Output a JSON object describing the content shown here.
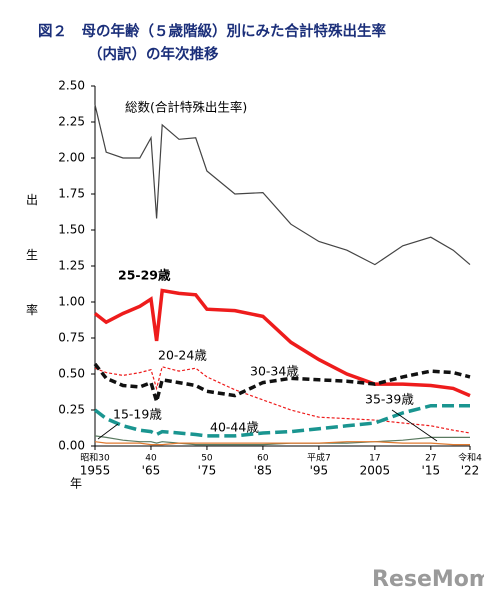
{
  "chart_data": {
    "type": "line",
    "title": "図２　母の年齢（５歳階級）別にみた合計特殊出生率",
    "subtitle": "（内訳）の年次推移",
    "y_label": "出生率",
    "x_label": "年",
    "x": [
      1955,
      1957,
      1960,
      1963,
      1965,
      1966,
      1967,
      1970,
      1973,
      1975,
      1980,
      1985,
      1990,
      1995,
      2000,
      2005,
      2010,
      2015,
      2019,
      2022
    ],
    "series": [
      {
        "name": "総数(合計特殊出生率)",
        "color": "#444444",
        "width": 1.2,
        "dash": "none",
        "values": [
          2.37,
          2.04,
          2.0,
          2.0,
          2.14,
          1.58,
          2.23,
          2.13,
          2.14,
          1.91,
          1.75,
          1.76,
          1.54,
          1.42,
          1.36,
          1.26,
          1.39,
          1.45,
          1.36,
          1.26
        ]
      },
      {
        "name": "25-29歳",
        "color": "#ee1c1c",
        "width": 3.5,
        "dash": "none",
        "values": [
          0.92,
          0.86,
          0.92,
          0.97,
          1.02,
          0.73,
          1.08,
          1.06,
          1.05,
          0.95,
          0.94,
          0.9,
          0.72,
          0.6,
          0.5,
          0.43,
          0.43,
          0.42,
          0.4,
          0.35
        ]
      },
      {
        "name": "20-24歳",
        "color": "#ee1c1c",
        "width": 1.2,
        "dash": "3,2",
        "values": [
          0.54,
          0.51,
          0.49,
          0.51,
          0.53,
          0.4,
          0.55,
          0.52,
          0.54,
          0.48,
          0.39,
          0.32,
          0.25,
          0.2,
          0.19,
          0.18,
          0.16,
          0.14,
          0.11,
          0.09
        ]
      },
      {
        "name": "30-34歳",
        "color": "#111111",
        "width": 3.5,
        "dash": "7,4",
        "values": [
          0.57,
          0.47,
          0.42,
          0.41,
          0.44,
          0.31,
          0.46,
          0.44,
          0.42,
          0.38,
          0.35,
          0.44,
          0.47,
          0.46,
          0.45,
          0.43,
          0.48,
          0.52,
          0.51,
          0.48
        ]
      },
      {
        "name": "35-39歳",
        "color": "#1a9590",
        "width": 3.5,
        "dash": "12,5",
        "values": [
          0.25,
          0.19,
          0.14,
          0.11,
          0.1,
          0.08,
          0.1,
          0.09,
          0.08,
          0.07,
          0.07,
          0.09,
          0.1,
          0.12,
          0.14,
          0.16,
          0.23,
          0.28,
          0.28,
          0.28
        ]
      },
      {
        "name": "40-44歳",
        "color": "#5a7a60",
        "width": 1.2,
        "dash": "none",
        "values": [
          0.07,
          0.06,
          0.04,
          0.03,
          0.03,
          0.02,
          0.03,
          0.02,
          0.01,
          0.01,
          0.01,
          0.01,
          0.02,
          0.02,
          0.02,
          0.03,
          0.04,
          0.06,
          0.06,
          0.06
        ]
      },
      {
        "name": "15-19歳",
        "color": "#e07a30",
        "width": 1.2,
        "dash": "none",
        "values": [
          0.03,
          0.02,
          0.02,
          0.02,
          0.01,
          0.01,
          0.01,
          0.02,
          0.02,
          0.02,
          0.02,
          0.02,
          0.02,
          0.02,
          0.03,
          0.03,
          0.02,
          0.02,
          0.01,
          0.01
        ]
      }
    ],
    "xlim": [
      1955,
      2022
    ],
    "ylim": [
      0,
      2.5
    ],
    "yticks": [
      {
        "value": 0,
        "label": "0.00"
      },
      {
        "value": 0.25,
        "label": "0.25"
      },
      {
        "value": 0.5,
        "label": "0.50"
      },
      {
        "value": 0.75,
        "label": "0.75"
      },
      {
        "value": 1,
        "label": "1.00"
      },
      {
        "value": 1.25,
        "label": "1.25"
      },
      {
        "value": 1.5,
        "label": "1.50"
      },
      {
        "value": 1.75,
        "label": "1.75"
      },
      {
        "value": 2,
        "label": "2.00"
      },
      {
        "value": 2.25,
        "label": "2.25"
      },
      {
        "value": 2.5,
        "label": "2.50"
      }
    ],
    "xticks": [
      1955,
      {
        "value": 1965,
        "label": "'65"
      },
      {
        "value": 1975,
        "label": "'75"
      },
      {
        "value": 1985,
        "label": "'85"
      },
      {
        "value": 1995,
        "label": "'95"
      },
      2005,
      {
        "value": 2015,
        "label": "'15"
      },
      {
        "value": 2022,
        "label": "'22"
      }
    ],
    "xticks_era": [
      {
        "value": 1955,
        "label": "昭和30"
      },
      {
        "value": 1965,
        "label": "40"
      },
      {
        "value": 1975,
        "label": "50"
      },
      {
        "value": 1985,
        "label": "60"
      },
      {
        "value": 1995,
        "label": "平成7"
      },
      {
        "value": 2005,
        "label": "17"
      },
      {
        "value": 2015,
        "label": "27"
      },
      {
        "value": 2022,
        "label": "令和4"
      }
    ],
    "watermark": "ReseMom"
  }
}
